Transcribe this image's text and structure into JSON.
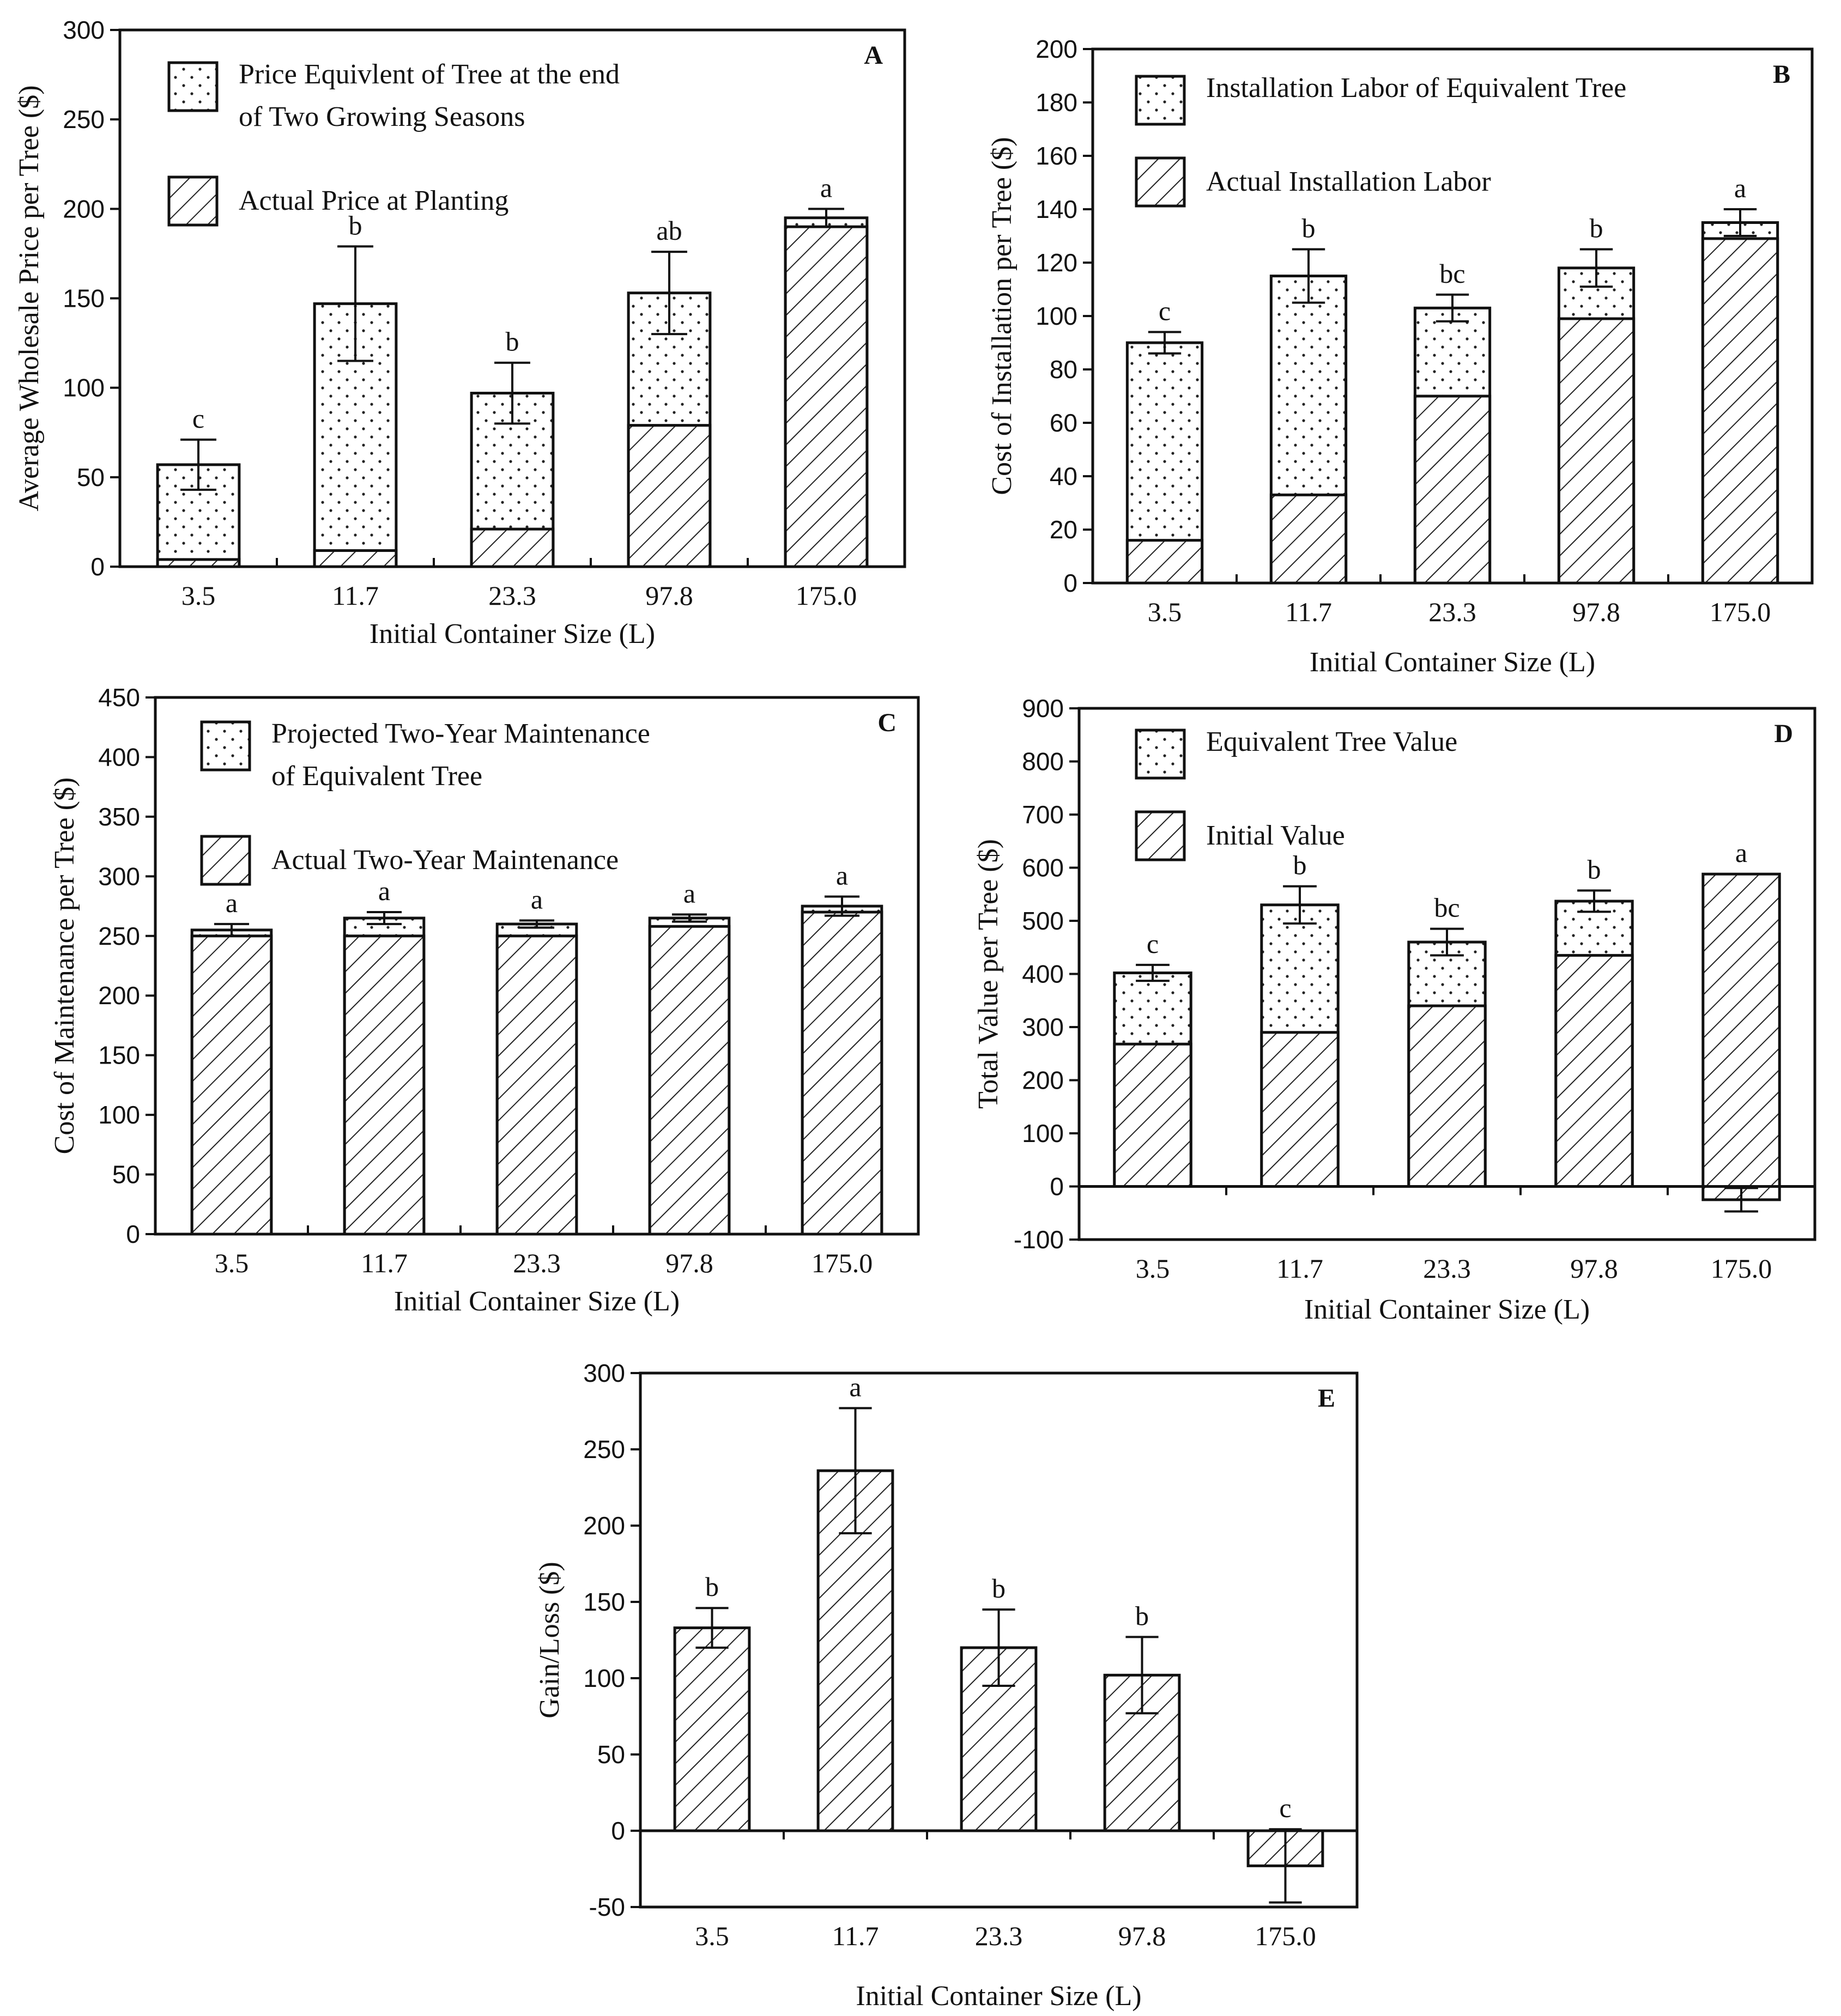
{
  "chart_data": [
    {
      "panel": "A",
      "type": "bar",
      "categories": [
        "3.5",
        "11.7",
        "23.3",
        "97.8",
        "175.0"
      ],
      "xlabel": "Initial Container Size (L)",
      "ylabel": "Average Wholesale Price per Tree ($)",
      "ylim": [
        0,
        300
      ],
      "yticks": [
        0,
        50,
        100,
        150,
        200,
        250,
        300
      ],
      "legend": [
        "Price Equivlent of Tree at the end|of Two Growing Seasons",
        "Actual Price at Planting"
      ],
      "series": [
        {
          "name": "Actual Price at Planting",
          "pattern": "hatch",
          "values": [
            4,
            9,
            21,
            79,
            190
          ]
        },
        {
          "name": "Price Equivlent of Tree at the end of Two Growing Seasons",
          "pattern": "dots",
          "values": [
            57,
            147,
            97,
            153,
            195
          ]
        }
      ],
      "errors": [
        14,
        32,
        17,
        23,
        5
      ],
      "letters": [
        "c",
        "b",
        "b",
        "ab",
        "a"
      ]
    },
    {
      "panel": "B",
      "type": "bar",
      "categories": [
        "3.5",
        "11.7",
        "23.3",
        "97.8",
        "175.0"
      ],
      "xlabel": "Initial Container Size (L)",
      "ylabel": "Cost of Installation per Tree ($)",
      "ylim": [
        0,
        200
      ],
      "yticks": [
        0,
        20,
        40,
        60,
        80,
        100,
        120,
        140,
        160,
        180,
        200
      ],
      "legend": [
        "Installation Labor of Equivalent Tree",
        "Actual Installation Labor"
      ],
      "series": [
        {
          "name": "Actual Installation Labor",
          "pattern": "hatch",
          "values": [
            16,
            33,
            70,
            99,
            129
          ]
        },
        {
          "name": "Installation Labor of Equivalent Tree",
          "pattern": "dots",
          "values": [
            90,
            115,
            103,
            118,
            135
          ]
        }
      ],
      "errors": [
        4,
        10,
        5,
        7,
        5
      ],
      "letters": [
        "c",
        "b",
        "bc",
        "b",
        "a"
      ]
    },
    {
      "panel": "C",
      "type": "bar",
      "categories": [
        "3.5",
        "11.7",
        "23.3",
        "97.8",
        "175.0"
      ],
      "xlabel": "Initial Container Size (L)",
      "ylabel": "Cost of Maintenance per Tree ($)",
      "ylim": [
        0,
        450
      ],
      "yticks": [
        0,
        50,
        100,
        150,
        200,
        250,
        300,
        350,
        400,
        450
      ],
      "legend": [
        "Projected Two-Year Maintenance|of Equivalent Tree",
        "Actual Two-Year Maintenance"
      ],
      "series": [
        {
          "name": "Actual Two-Year Maintenance",
          "pattern": "hatch",
          "values": [
            250,
            250,
            250,
            258,
            270
          ]
        },
        {
          "name": "Projected Two-Year Maintenance of Equivalent Tree",
          "pattern": "dots",
          "values": [
            255,
            265,
            260,
            265,
            275
          ]
        }
      ],
      "errors": [
        5,
        5,
        3,
        3,
        8
      ],
      "letters": [
        "a",
        "a",
        "a",
        "a",
        "a"
      ]
    },
    {
      "panel": "D",
      "type": "bar",
      "categories": [
        "3.5",
        "11.7",
        "23.3",
        "97.8",
        "175.0"
      ],
      "xlabel": "Initial Container Size (L)",
      "ylabel": "Total Value per Tree ($)",
      "ylim": [
        -100,
        900
      ],
      "yticks": [
        -100,
        0,
        100,
        200,
        300,
        400,
        500,
        600,
        700,
        800,
        900
      ],
      "legend": [
        "Equivalent Tree Value",
        "Initial Value"
      ],
      "series": [
        {
          "name": "Initial Value",
          "pattern": "hatch",
          "values": [
            268,
            290,
            340,
            435,
            588
          ]
        },
        {
          "name": "Equivalent Tree Value",
          "pattern": "dots",
          "values": [
            402,
            530,
            460,
            537,
            0
          ]
        }
      ],
      "negative_values": [
        0,
        0,
        0,
        0,
        -25
      ],
      "errors": [
        15,
        35,
        25,
        20,
        22
      ],
      "letters": [
        "c",
        "b",
        "bc",
        "b",
        "a"
      ]
    },
    {
      "panel": "E",
      "type": "bar",
      "categories": [
        "3.5",
        "11.7",
        "23.3",
        "97.8",
        "175.0"
      ],
      "xlabel": "Initial Container Size (L)",
      "ylabel": "Gain/Loss ($)",
      "ylim": [
        -50,
        300
      ],
      "yticks": [
        -50,
        0,
        50,
        100,
        150,
        200,
        250,
        300
      ],
      "series": [
        {
          "name": "Gain/Loss",
          "pattern": "hatch",
          "values": [
            133,
            236,
            120,
            102,
            -23
          ]
        }
      ],
      "errors": [
        13,
        41,
        25,
        25,
        24
      ],
      "letters": [
        "b",
        "a",
        "b",
        "b",
        "c"
      ]
    }
  ]
}
